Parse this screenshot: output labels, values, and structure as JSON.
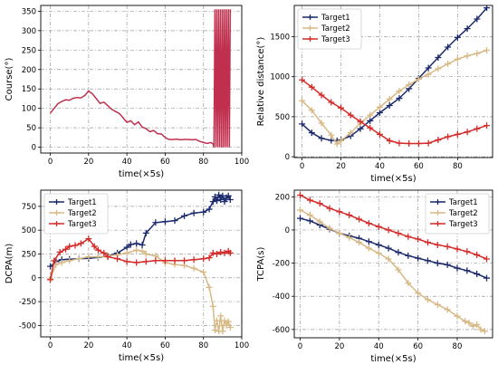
{
  "chart_data": [
    {
      "type": "line",
      "xlabel": "time(×5s)",
      "ylabel": "Course(°)",
      "xlim": [
        -5,
        100
      ],
      "ylim": [
        -15,
        365
      ],
      "xticks": [
        0,
        20,
        40,
        60,
        80,
        100
      ],
      "yticks": [
        0,
        50,
        100,
        150,
        200,
        250,
        300,
        350
      ],
      "grid": true,
      "legend": null,
      "series": [
        {
          "color": "#c0304e",
          "marker": "none",
          "x": [
            0,
            2,
            4,
            6,
            8,
            10,
            12,
            14,
            16,
            18,
            20,
            22,
            24,
            26,
            28,
            30,
            32,
            34,
            36,
            38,
            40,
            42,
            44,
            46,
            48,
            50,
            52,
            54,
            56,
            58,
            60,
            62,
            64,
            66,
            68,
            70,
            72,
            74,
            76,
            78,
            80,
            82,
            84,
            85,
            85.5,
            86,
            86.5,
            87,
            87.5,
            88,
            88.5,
            89,
            89.5,
            90,
            90.5,
            91,
            91.5,
            92,
            92.5,
            93,
            93.5,
            94
          ],
          "y": [
            88,
            100,
            112,
            118,
            122,
            121,
            126,
            128,
            127,
            133,
            145,
            137,
            125,
            113,
            116,
            107,
            98,
            92,
            87,
            76,
            64,
            68,
            58,
            65,
            52,
            48,
            40,
            43,
            35,
            34,
            25,
            20,
            20,
            21,
            19,
            20,
            20,
            19,
            20,
            15,
            12,
            10,
            12,
            8,
            0,
            355,
            0,
            355,
            0,
            355,
            0,
            355,
            0,
            355,
            0,
            355,
            0,
            355,
            0,
            355,
            0,
            355
          ]
        }
      ]
    },
    {
      "type": "line",
      "xlabel": "time(×5s)",
      "ylabel": "Relative distance(°)",
      "xlim": [
        -4,
        98
      ],
      "ylim": [
        -10,
        1890
      ],
      "xticks": [
        0,
        20,
        40,
        60,
        80
      ],
      "yticks": [
        0,
        500,
        1000,
        1500
      ],
      "grid": true,
      "legend": "top-left",
      "series": [
        {
          "name": "Target1",
          "color": "#1a2a6c",
          "marker": "+",
          "x": [
            0,
            5,
            10,
            15,
            18,
            20,
            25,
            30,
            35,
            40,
            45,
            50,
            55,
            60,
            65,
            70,
            75,
            80,
            85,
            90,
            95
          ],
          "y": [
            410,
            300,
            230,
            205,
            200,
            210,
            260,
            350,
            450,
            550,
            640,
            730,
            850,
            980,
            1110,
            1240,
            1370,
            1490,
            1600,
            1720,
            1860
          ]
        },
        {
          "name": "Target2",
          "color": "#d8b986",
          "marker": "+",
          "x": [
            0,
            5,
            10,
            15,
            18,
            20,
            25,
            30,
            35,
            40,
            45,
            50,
            55,
            60,
            65,
            70,
            75,
            80,
            85,
            90,
            95
          ],
          "y": [
            700,
            580,
            420,
            270,
            160,
            200,
            300,
            420,
            520,
            620,
            720,
            820,
            900,
            970,
            1030,
            1100,
            1160,
            1220,
            1260,
            1290,
            1330
          ]
        },
        {
          "name": "Target3",
          "color": "#d42a28",
          "marker": "+",
          "x": [
            0,
            5,
            10,
            15,
            20,
            25,
            30,
            35,
            40,
            45,
            50,
            55,
            60,
            65,
            70,
            75,
            80,
            85,
            90,
            95
          ],
          "y": [
            960,
            870,
            770,
            680,
            610,
            520,
            440,
            360,
            280,
            200,
            170,
            165,
            165,
            170,
            210,
            250,
            280,
            310,
            350,
            390
          ]
        }
      ]
    },
    {
      "type": "line",
      "xlabel": "time(×5s)",
      "ylabel": "DCPA(m)",
      "xlim": [
        -5,
        100
      ],
      "ylim": [
        -620,
        920
      ],
      "xticks": [
        0,
        20,
        40,
        60,
        80,
        100
      ],
      "yticks": [
        -500,
        -250,
        0,
        250,
        500,
        750
      ],
      "grid": true,
      "legend": "top-left",
      "series": [
        {
          "name": "Target1",
          "color": "#1a2a6c",
          "marker": "+",
          "x": [
            0,
            3,
            6,
            10,
            15,
            20,
            25,
            30,
            35,
            40,
            42,
            45,
            48,
            50,
            55,
            60,
            65,
            70,
            75,
            80,
            83,
            85,
            86,
            87,
            88,
            89,
            90,
            91,
            92,
            93,
            94
          ],
          "y": [
            120,
            170,
            190,
            195,
            200,
            205,
            215,
            230,
            260,
            320,
            350,
            360,
            345,
            470,
            580,
            590,
            600,
            650,
            680,
            690,
            720,
            800,
            850,
            810,
            870,
            820,
            860,
            800,
            840,
            860,
            820
          ]
        },
        {
          "name": "Target2",
          "color": "#d8b986",
          "marker": "+",
          "x": [
            0,
            3,
            6,
            10,
            15,
            20,
            25,
            30,
            35,
            40,
            45,
            48,
            50,
            55,
            60,
            65,
            70,
            75,
            80,
            83,
            85,
            86,
            87,
            88,
            89,
            90,
            91,
            92,
            93,
            94
          ],
          "y": [
            -10,
            140,
            160,
            180,
            200,
            220,
            220,
            230,
            240,
            260,
            290,
            280,
            250,
            230,
            160,
            140,
            130,
            100,
            60,
            -100,
            -300,
            -550,
            -450,
            -560,
            -400,
            -560,
            -450,
            -500,
            -460,
            -520
          ]
        },
        {
          "name": "Target3",
          "color": "#d42a28",
          "marker": "+",
          "x": [
            0,
            2,
            5,
            8,
            10,
            13,
            16,
            20,
            23,
            25,
            28,
            30,
            35,
            40,
            45,
            50,
            55,
            60,
            65,
            70,
            75,
            80,
            83,
            85,
            87,
            89,
            91,
            93,
            94
          ],
          "y": [
            -20,
            180,
            270,
            300,
            330,
            340,
            360,
            410,
            330,
            290,
            260,
            220,
            200,
            170,
            160,
            170,
            180,
            180,
            180,
            180,
            190,
            200,
            210,
            260,
            250,
            270,
            260,
            280,
            260
          ]
        }
      ]
    },
    {
      "type": "line",
      "xlabel": "time(×5s)",
      "ylabel": "TCPA(s)",
      "xlim": [
        -3,
        98
      ],
      "ylim": [
        -650,
        240
      ],
      "xticks": [
        0,
        20,
        40,
        60,
        80
      ],
      "yticks": [
        -600,
        -400,
        -200,
        0,
        200
      ],
      "grid": true,
      "legend": "top-right",
      "series": [
        {
          "name": "Target1",
          "color": "#1a2a6c",
          "marker": "+",
          "x": [
            0,
            5,
            10,
            15,
            20,
            25,
            30,
            35,
            40,
            45,
            50,
            55,
            60,
            65,
            70,
            75,
            80,
            85,
            90,
            95
          ],
          "y": [
            70,
            55,
            30,
            5,
            -20,
            -35,
            -50,
            -70,
            -90,
            -110,
            -135,
            -155,
            -170,
            -185,
            -200,
            -210,
            -230,
            -245,
            -265,
            -290
          ]
        },
        {
          "name": "Target2",
          "color": "#d8b986",
          "marker": "+",
          "x": [
            0,
            5,
            10,
            15,
            20,
            25,
            30,
            35,
            40,
            45,
            50,
            55,
            60,
            65,
            70,
            75,
            80,
            84,
            86,
            88,
            90,
            92,
            94
          ],
          "y": [
            120,
            90,
            50,
            10,
            -20,
            -45,
            -75,
            -110,
            -140,
            -175,
            -240,
            -320,
            -380,
            -420,
            -450,
            -480,
            -520,
            -550,
            -560,
            -580,
            -570,
            -600,
            -610
          ]
        },
        {
          "name": "Target3",
          "color": "#d42a28",
          "marker": "+",
          "x": [
            0,
            5,
            10,
            15,
            20,
            25,
            30,
            35,
            40,
            45,
            50,
            55,
            60,
            65,
            70,
            75,
            80,
            85,
            90,
            95
          ],
          "y": [
            210,
            180,
            160,
            130,
            110,
            90,
            65,
            40,
            20,
            0,
            -20,
            -40,
            -55,
            -75,
            -90,
            -100,
            -115,
            -130,
            -150,
            -175
          ]
        }
      ]
    }
  ]
}
